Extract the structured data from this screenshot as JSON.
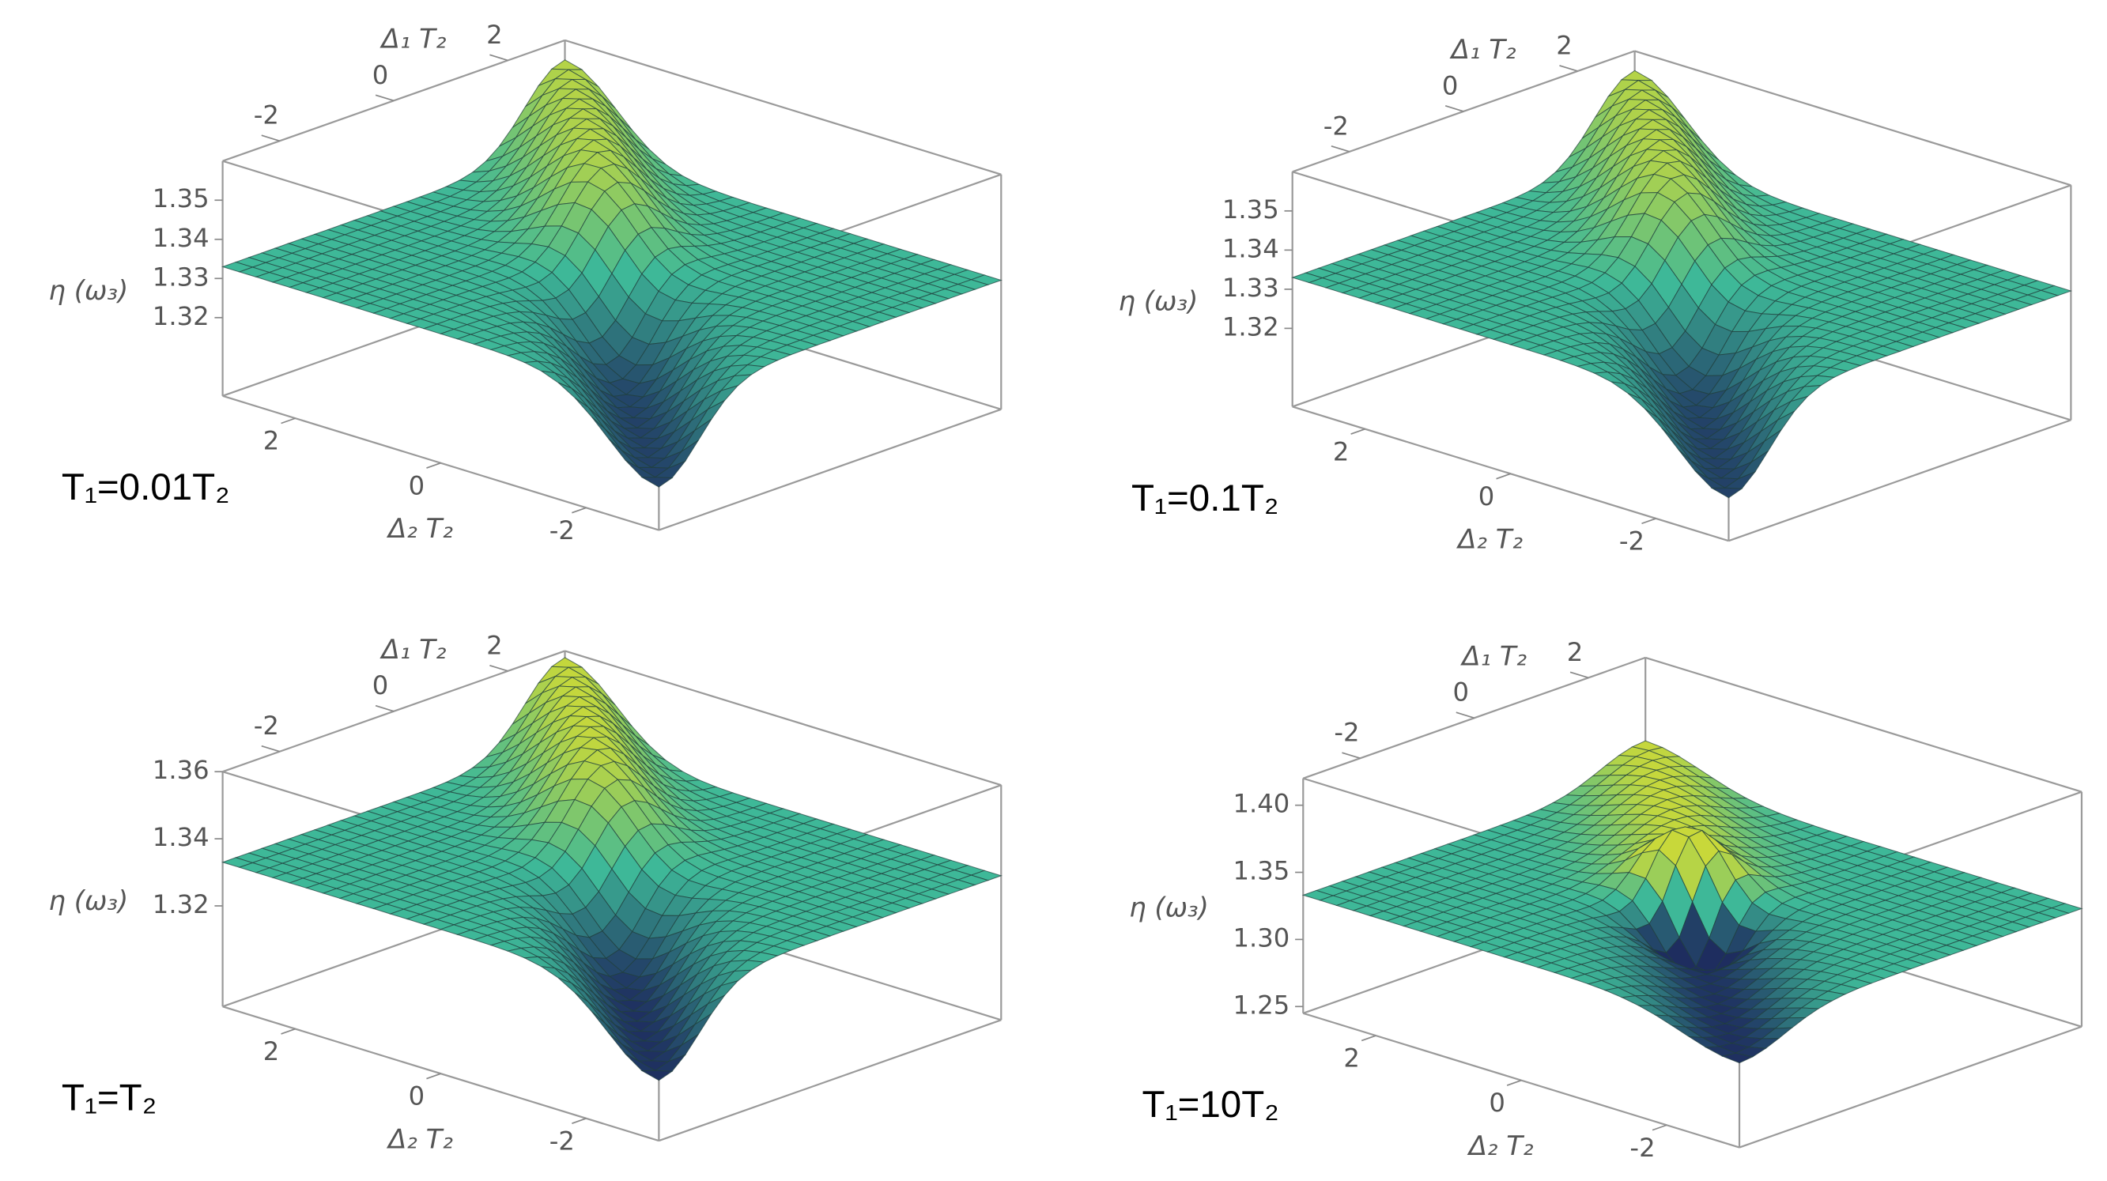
{
  "chart_data": [
    {
      "type": "surface",
      "xlabel": "Δ₁ T₂",
      "ylabel": "Δ₂ T₂",
      "zlabel": "η (ω₃)",
      "annotation": "T₁=0.01T₂",
      "xlim": [
        -3,
        3
      ],
      "ylim": [
        -3,
        3
      ],
      "zlim": [
        1.3,
        1.36
      ],
      "xticks": [
        -2,
        0,
        2
      ],
      "yticks": [
        -2,
        0,
        2
      ],
      "zticks": [
        1.32,
        1.33,
        1.34,
        1.35
      ]
    },
    {
      "type": "surface",
      "xlabel": "Δ₁ T₂",
      "ylabel": "Δ₂ T₂",
      "zlabel": "η (ω₃)",
      "annotation": "T₁=0.1T₂",
      "xlim": [
        -3,
        3
      ],
      "ylim": [
        -3,
        3
      ],
      "zlim": [
        1.3,
        1.36
      ],
      "xticks": [
        -2,
        0,
        2
      ],
      "yticks": [
        -2,
        0,
        2
      ],
      "zticks": [
        1.32,
        1.33,
        1.34,
        1.35
      ]
    },
    {
      "type": "surface",
      "xlabel": "Δ₁ T₂",
      "ylabel": "Δ₂ T₂",
      "zlabel": "η (ω₃)",
      "annotation": "T₁=T₂",
      "xlim": [
        -3,
        3
      ],
      "ylim": [
        -3,
        3
      ],
      "zlim": [
        1.29,
        1.36
      ],
      "xticks": [
        -2,
        0,
        2
      ],
      "yticks": [
        -2,
        0,
        2
      ],
      "zticks": [
        1.32,
        1.34,
        1.36
      ]
    },
    {
      "type": "surface",
      "xlabel": "Δ₁ T₂",
      "ylabel": "Δ₂ T₂",
      "zlabel": "η (ω₃)",
      "annotation": "T₁=10T₂",
      "xlim": [
        -3,
        3
      ],
      "ylim": [
        -3,
        3
      ],
      "zlim": [
        1.245,
        1.42
      ],
      "xticks": [
        -2,
        0,
        2
      ],
      "yticks": [
        -2,
        0,
        2
      ],
      "zticks": [
        1.25,
        {
          "value": 1.3,
          "label": "1.30"
        },
        1.35,
        {
          "value": 1.4,
          "label": "1.40"
        }
      ]
    }
  ]
}
